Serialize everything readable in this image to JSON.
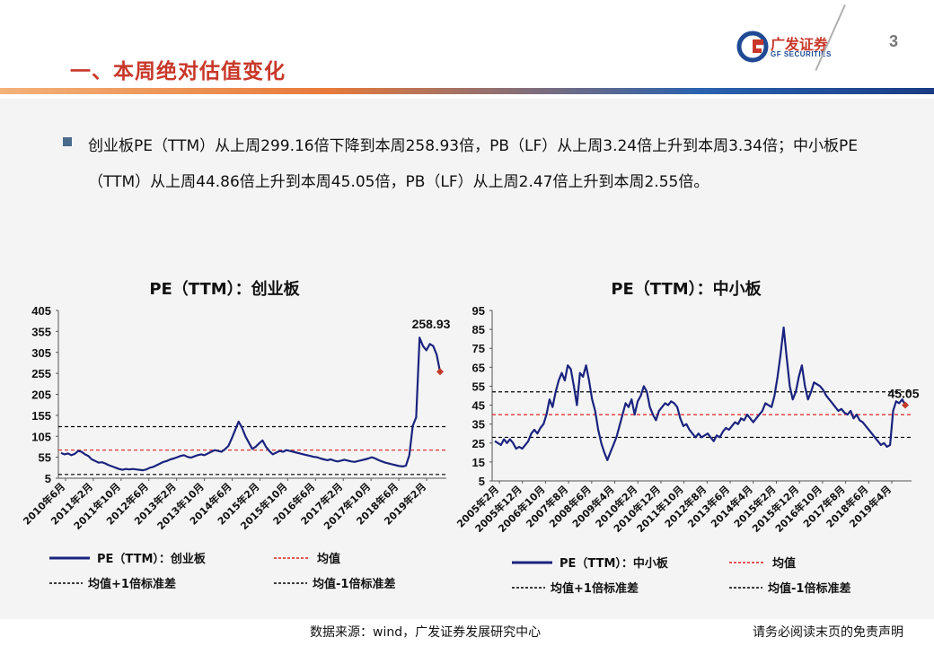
{
  "header": {
    "title": "一、本周绝对估值变化",
    "logo_cn": "广发证券",
    "logo_en": "GF SECURITIES",
    "page_number": "3"
  },
  "summary": {
    "text": "创业板PE（TTM）从上周299.16倍下降到本周258.93倍，PB（LF）从上周3.24倍上升到本周3.34倍；中小板PE（TTM）从上周44.86倍上升到本周45.05倍，PB（LF）从上周2.47倍上升到本周2.55倍。"
  },
  "footer": {
    "source": "数据来源：wind，广发证券发展研究中心",
    "disclaimer": "请务必阅读末页的免责声明"
  },
  "colors": {
    "series": "#1a237e",
    "mean": "#e02020",
    "band": "#000000",
    "accent": "#c8382a",
    "endpoint": "#c0392b"
  },
  "chart_data": [
    {
      "type": "line",
      "title": "PE（TTM）：创业板",
      "ylim": [
        5,
        405
      ],
      "yticks": [
        5,
        55,
        105,
        155,
        205,
        255,
        305,
        355,
        405
      ],
      "x_tick_labels": [
        "2010年6月",
        "2011年2月",
        "2011年10月",
        "2012年6月",
        "2013年2月",
        "2013年10月",
        "2014年6月",
        "2015年2月",
        "2015年10月",
        "2016年6月",
        "2017年2月",
        "2017年10月",
        "2018年6月",
        "2019年2月"
      ],
      "mean": 72,
      "mean_plus_1sd": 128,
      "mean_minus_1sd": 14,
      "end_label": "258.93",
      "legend": {
        "series": "PE（TTM）：创业板",
        "mean": "均值",
        "plus": "均值+1倍标准差",
        "minus": "均值-1倍标准差"
      },
      "series": [
        {
          "name": "PE（TTM）：创业板",
          "values": [
            65,
            62,
            64,
            60,
            63,
            70,
            68,
            62,
            58,
            50,
            46,
            42,
            43,
            40,
            36,
            33,
            30,
            27,
            25,
            27,
            26,
            27,
            26,
            25,
            24,
            26,
            30,
            32,
            36,
            40,
            44,
            46,
            50,
            52,
            55,
            58,
            60,
            56,
            54,
            57,
            60,
            62,
            60,
            64,
            68,
            72,
            70,
            68,
            74,
            82,
            100,
            120,
            140,
            125,
            105,
            90,
            75,
            80,
            88,
            95,
            80,
            70,
            62,
            66,
            70,
            68,
            72,
            70,
            68,
            66,
            64,
            62,
            60,
            58,
            56,
            55,
            52,
            50,
            48,
            50,
            47,
            45,
            47,
            49,
            47,
            45,
            44,
            46,
            48,
            50,
            52,
            55,
            52,
            48,
            45,
            42,
            40,
            38,
            36,
            34,
            33,
            35,
            60,
            130,
            150,
            340,
            320,
            310,
            325,
            320,
            300,
            258.93
          ]
        }
      ]
    },
    {
      "type": "line",
      "title": "PE（TTM）：中小板",
      "ylim": [
        5,
        95
      ],
      "yticks": [
        5,
        15,
        25,
        35,
        45,
        55,
        65,
        75,
        85,
        95
      ],
      "x_tick_labels": [
        "2005年2月",
        "2005年12月",
        "2006年10月",
        "2007年8月",
        "2008年6月",
        "2009年4月",
        "2010年2月",
        "2010年12月",
        "2011年10月",
        "2012年8月",
        "2013年6月",
        "2014年4月",
        "2015年2月",
        "2015年12月",
        "2016年10月",
        "2017年8月",
        "2018年6月",
        "2019年4月"
      ],
      "mean": 40,
      "mean_plus_1sd": 52,
      "mean_minus_1sd": 28,
      "end_label": "45.05",
      "legend": {
        "series": "PE（TTM）：中小板",
        "mean": "均值",
        "plus": "均值+1倍标准差",
        "minus": "均值-1倍标准差"
      },
      "series": [
        {
          "name": "PE（TTM）：中小板",
          "values": [
            26,
            25,
            24,
            27,
            25,
            27,
            25,
            22,
            23,
            22,
            24,
            26,
            30,
            32,
            30,
            33,
            35,
            40,
            48,
            44,
            52,
            58,
            62,
            58,
            66,
            64,
            55,
            45,
            62,
            60,
            66,
            58,
            48,
            42,
            32,
            25,
            20,
            16,
            20,
            24,
            28,
            34,
            40,
            46,
            44,
            48,
            40,
            47,
            50,
            55,
            52,
            44,
            40,
            37,
            42,
            44,
            46,
            45,
            47,
            46,
            44,
            38,
            34,
            35,
            32,
            30,
            28,
            30,
            28,
            29,
            30,
            28,
            26,
            29,
            28,
            31,
            33,
            32,
            34,
            36,
            35,
            38,
            37,
            40,
            38,
            36,
            38,
            40,
            42,
            46,
            45,
            44,
            50,
            60,
            72,
            86,
            70,
            55,
            48,
            52,
            60,
            66,
            55,
            48,
            52,
            57,
            56,
            55,
            53,
            50,
            48,
            46,
            44,
            42,
            43,
            41,
            40,
            42,
            38,
            40,
            37,
            36,
            34,
            32,
            30,
            28,
            26,
            24,
            25,
            23,
            24,
            42,
            47,
            46,
            48,
            45.05
          ]
        }
      ]
    }
  ]
}
